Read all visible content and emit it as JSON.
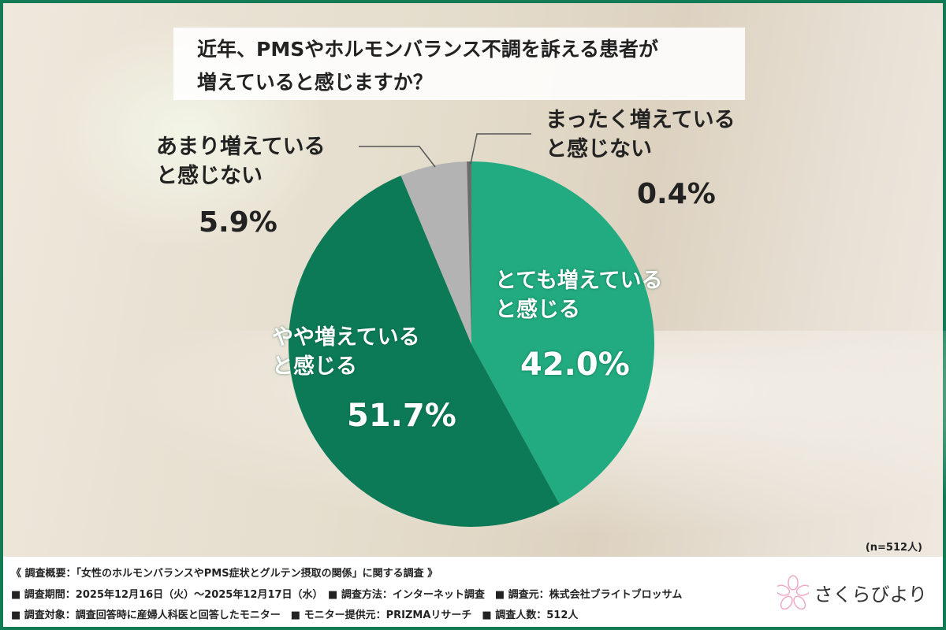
{
  "title": "近年、PMSやホルモンバランス不調を訴える患者が\n増えていると感じますか？",
  "chart_data": {
    "type": "pie",
    "title": "近年、PMSやホルモンバランス不調を訴える患者が増えていると感じますか？",
    "start": "top",
    "direction": "clockwise",
    "slices": [
      {
        "label": "とても増えている\nと感じる",
        "value": 42.0,
        "display": "42.0%",
        "color": "#22ab80"
      },
      {
        "label": "やや増えている\nと感じる",
        "value": 51.7,
        "display": "51.7%",
        "color": "#0d7a57"
      },
      {
        "label": "あまり増えている\nと感じない",
        "value": 5.9,
        "display": "5.9%",
        "color": "#b3b3b3"
      },
      {
        "label": "まったく増えている\nと感じない",
        "value": 0.4,
        "display": "0.4%",
        "color": "#6b6b6b"
      }
    ],
    "note": "(n=512人)"
  },
  "footer": {
    "line1": "《 調査概要：「女性のホルモンバランスやPMS症状とグルテン摂取の関係」に関する調査 》",
    "line2": "■ 調査期間：2025年12月16日（火）～2025年12月17日（水）　■ 調査方法：インターネット調査　■ 調査元：株式会社ブライトブロッサム",
    "line3": "■ 調査対象：調査回答時に産婦人科医と回答したモニター　■ モニター提供元：PRIZMAリサーチ　■ 調査人数：512人"
  },
  "logo": {
    "text": "さくらびより",
    "icon": "sakura-flower-icon"
  },
  "colors": {
    "frame": "#127a55"
  }
}
